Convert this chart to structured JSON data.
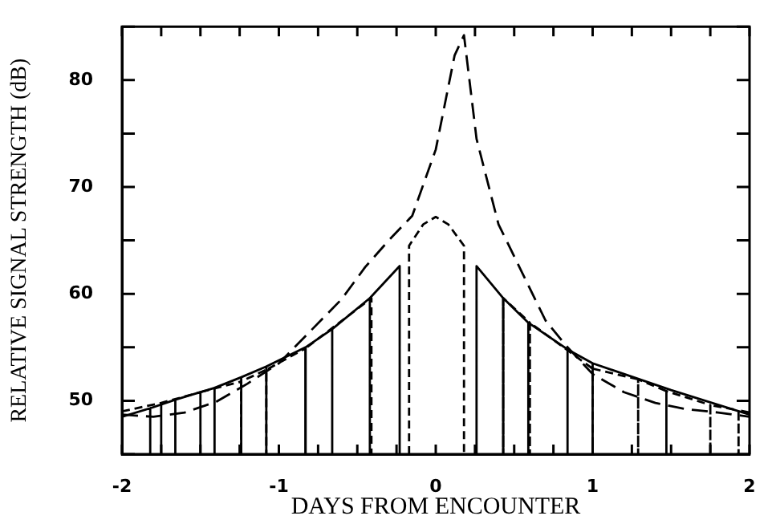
{
  "chart_data": {
    "type": "line",
    "xlabel": "DAYS FROM ENCOUNTER",
    "ylabel": "RELATIVE SIGNAL STRENGTH (dB)",
    "xlim": [
      -2,
      2
    ],
    "xticks": [
      -2,
      {
        "value": -1.75,
        "label": null
      },
      {
        "value": -1.5,
        "label": null
      },
      {
        "value": -1.25,
        "label": null
      },
      -1,
      {
        "value": -0.75,
        "label": null
      },
      {
        "value": -0.5,
        "label": null
      },
      {
        "value": -0.25,
        "label": null
      },
      0,
      {
        "value": 0.25,
        "label": null
      },
      {
        "value": 0.5,
        "label": null
      },
      {
        "value": 0.75,
        "label": null
      },
      1,
      {
        "value": 1.25,
        "label": null
      },
      {
        "value": 1.5,
        "label": null
      },
      {
        "value": 1.75,
        "label": null
      },
      2
    ],
    "ylim": [
      45,
      85
    ],
    "yticks": [
      {
        "value": 45,
        "label": null
      },
      50,
      {
        "value": 55,
        "label": null
      },
      60,
      {
        "value": 65,
        "label": null
      },
      70,
      {
        "value": 75,
        "label": null
      },
      80,
      {
        "value": 85,
        "label": null
      }
    ],
    "grid": false,
    "legend": false,
    "marker": "none",
    "series": [
      {
        "color": "#000000",
        "line_style": "dashed",
        "x": [
          -2,
          -1.8,
          -1.6,
          -1.4,
          -1.2,
          -1.0,
          -0.8,
          -0.6,
          -0.45,
          -0.3,
          -0.15,
          0,
          0.12,
          0.18,
          0.26,
          0.4,
          0.55,
          0.7,
          0.84,
          1.0,
          1.2,
          1.4,
          1.6,
          1.8,
          2.0
        ],
        "values": [
          48.7,
          48.5,
          48.9,
          49.9,
          51.6,
          53.5,
          56.5,
          59.5,
          62.5,
          65.0,
          67.3,
          73.5,
          82.3,
          84.2,
          74.5,
          66.5,
          62.0,
          57.5,
          55.0,
          52.5,
          50.8,
          49.8,
          49.2,
          48.9,
          48.5
        ]
      },
      {
        "color": "#000000",
        "line_style": "solid",
        "x": [
          -2,
          -1.82,
          -1.82,
          -1.82,
          -1.66,
          -1.66,
          -1.66,
          -1.41,
          -1.41,
          -1.41,
          -1.24,
          -1.24,
          -1.24,
          -1.08,
          -1.08,
          -1.08,
          -0.83,
          -0.83,
          -0.83,
          -0.66,
          -0.66,
          -0.66,
          -0.42,
          -0.42,
          -0.42,
          -0.23,
          -0.23
        ],
        "values": [
          48.5,
          49.3,
          45,
          49.3,
          50.1,
          45,
          50.1,
          51.2,
          45,
          51.2,
          52.2,
          45,
          52.2,
          53.2,
          45,
          53.2,
          55.0,
          45,
          55.0,
          56.7,
          45,
          56.7,
          59.6,
          45,
          59.6,
          62.6,
          45
        ]
      },
      {
        "color": "#000000",
        "line_style": "solid",
        "x": [
          0.26,
          0.26,
          0.43,
          0.43,
          0.43,
          0.59,
          0.59,
          0.59,
          0.84,
          0.84,
          0.84,
          1.0,
          1.0,
          1.0,
          1.5,
          2.0
        ],
        "values": [
          45,
          62.6,
          59.6,
          45,
          59.6,
          57.3,
          45,
          57.3,
          54.8,
          45,
          54.8,
          53.5,
          45,
          53.5,
          51.0,
          48.7
        ]
      },
      {
        "color": "#000000",
        "line_style": "dotted",
        "x": [
          -2,
          -1.75,
          -1.75,
          -1.75,
          -1.5,
          -1.5,
          -1.5,
          -1.24,
          -1.24,
          -1.24,
          -1.08,
          -1.08,
          -1.08,
          -0.83,
          -0.83,
          -0.83,
          -0.41,
          -0.41
        ],
        "values": [
          49.0,
          49.8,
          45,
          49.8,
          50.8,
          45,
          50.8,
          51.8,
          45,
          51.8,
          52.9,
          45,
          52.9,
          54.9,
          45,
          54.9,
          59.6,
          45
        ]
      },
      {
        "color": "#000000",
        "line_style": "dotted",
        "x": [
          -0.17,
          -0.17,
          -0.08,
          0,
          0.08,
          0.18,
          0.18
        ],
        "values": [
          45,
          64.5,
          66.5,
          67.2,
          66.5,
          64.5,
          45
        ]
      },
      {
        "color": "#000000",
        "line_style": "dotted",
        "x": [
          0.43,
          0.43,
          0.43,
          0.6,
          0.6,
          0.6,
          1.0,
          1.0,
          1.0,
          1.29,
          1.29,
          1.29,
          1.47,
          1.47,
          1.47,
          1.75,
          1.75,
          1.75,
          1.93,
          1.93,
          1.93,
          2.0
        ],
        "values": [
          59.6,
          45,
          59.6,
          57.3,
          45,
          57.3,
          53.0,
          45,
          53.0,
          52.0,
          45,
          52.0,
          50.9,
          45,
          50.9,
          49.6,
          45,
          49.6,
          49.1,
          45,
          49.1,
          48.9
        ]
      }
    ]
  }
}
